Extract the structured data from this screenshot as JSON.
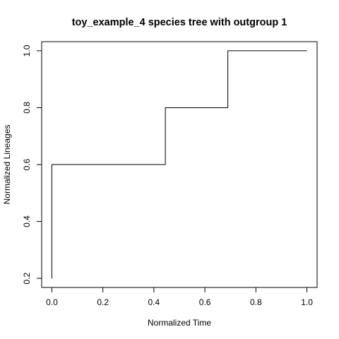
{
  "chart_data": {
    "type": "line",
    "step": "post",
    "title": "toy_example_4 species tree with outgroup 1",
    "xlabel": "Normalized Time",
    "ylabel": "Normalized Lineages",
    "xlim": [
      -0.04,
      1.04
    ],
    "ylim": [
      0.168,
      1.032
    ],
    "xticks": [
      0.0,
      0.2,
      0.4,
      0.6,
      0.8,
      1.0
    ],
    "xtick_labels": [
      "0.0",
      "0.2",
      "0.4",
      "0.6",
      "0.8",
      "1.0"
    ],
    "yticks": [
      0.2,
      0.4,
      0.6,
      0.8,
      1.0
    ],
    "ytick_labels": [
      "0.2",
      "0.4",
      "0.6",
      "0.8",
      "1.0"
    ],
    "grid": false,
    "series": [
      {
        "color": "#000000",
        "points": [
          {
            "x": 0.0,
            "y": 0.2
          },
          {
            "x": 0.0,
            "y": 0.6
          },
          {
            "x": 0.445,
            "y": 0.6
          },
          {
            "x": 0.445,
            "y": 0.8
          },
          {
            "x": 0.69,
            "y": 0.8
          },
          {
            "x": 0.69,
            "y": 1.0
          },
          {
            "x": 1.0,
            "y": 1.0
          }
        ]
      }
    ]
  }
}
